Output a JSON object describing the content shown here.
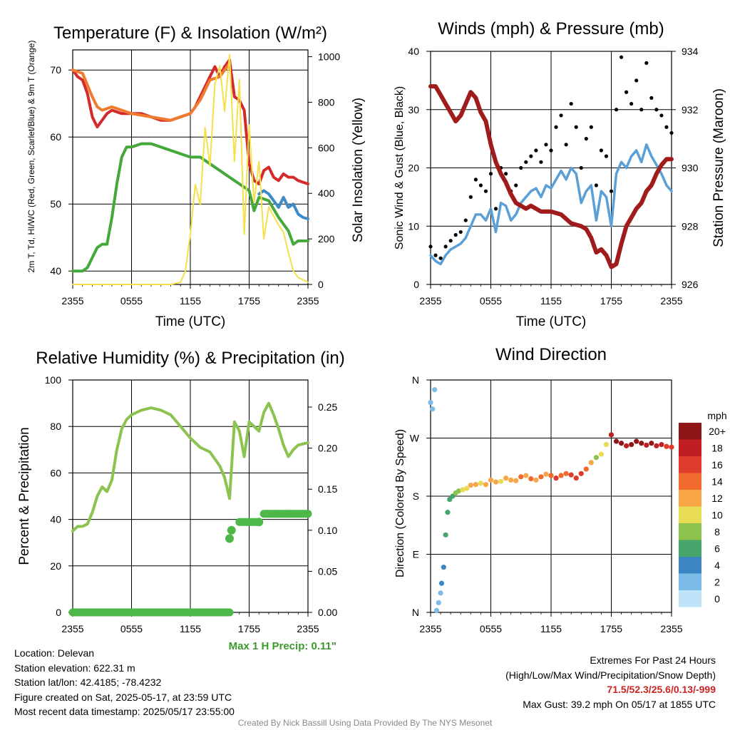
{
  "panels": {
    "temp": {
      "title": "Temperature (F) & Insolation (W/m²)",
      "ylabel_left": "2m T, Td, HI/WC (Red, Green, Scarlet/Blue) & 9m T (Orange)",
      "ylabel_right": "Solar Insolation (Yellow)",
      "xlabel": "Time (UTC)"
    },
    "wind": {
      "title": "Winds (mph) & Pressure (mb)",
      "ylabel_left": "Sonic Wind & Gust (Blue, Black)",
      "ylabel_right": "Station Pressure (Maroon)",
      "xlabel": "Time (UTC)"
    },
    "rh": {
      "title": "Relative Humidity (%) & Precipitation (in)",
      "ylabel_left": "Percent & Precipitation",
      "annotation": "Max 1 H Precip: 0.11\""
    },
    "dir": {
      "title": "Wind Direction",
      "ylabel_left": "Direction (Colored By Speed)",
      "colorbar_title": "mph",
      "colorbar_labels": [
        "20+",
        "18",
        "16",
        "14",
        "12",
        "10",
        "8",
        "6",
        "4",
        "2",
        "0"
      ],
      "colorbar_colors": [
        "#8e1616",
        "#be1e24",
        "#de3b2a",
        "#ef6a2c",
        "#f8a646",
        "#e8dc55",
        "#8cc34f",
        "#45a56a",
        "#3b86c2",
        "#7dbbe8",
        "#bfe3f8"
      ]
    }
  },
  "chart_data": [
    {
      "type": "line",
      "title": "Temperature (F) & Insolation (W/m²)",
      "xlabel": "Time (UTC)",
      "x_ticks": [
        "2355",
        "0555",
        "1155",
        "1755",
        "2355"
      ],
      "x_range_hours": [
        0,
        24
      ],
      "ylim": [
        38,
        73
      ],
      "yticks": [
        40,
        50,
        60,
        70
      ],
      "y2lim": [
        0,
        1030
      ],
      "y2ticks": [
        0,
        200,
        400,
        600,
        800,
        1000
      ],
      "grid": true,
      "series": [
        {
          "name": "2m T (Red)",
          "color": "#d42a2a",
          "axis": "left",
          "x": [
            0,
            0.5,
            1,
            1.5,
            2,
            2.5,
            3,
            3.5,
            4,
            5,
            6,
            7,
            8,
            9,
            10,
            11,
            12,
            12.5,
            13,
            13.5,
            14,
            14.5,
            15,
            15.5,
            16,
            16.5,
            17,
            17.5,
            18,
            18.5,
            19,
            19.5,
            20,
            20.5,
            21,
            21.5,
            22,
            22.5,
            23,
            24
          ],
          "y": [
            70,
            69,
            68.5,
            66.5,
            63,
            61.5,
            62.5,
            63.5,
            64,
            63.5,
            63.5,
            63.5,
            63,
            62.5,
            62.5,
            63,
            63.5,
            64.5,
            66,
            67.5,
            69,
            70.5,
            69,
            70.5,
            71.5,
            66,
            65.5,
            64,
            56,
            53.5,
            53,
            55,
            55.5,
            54,
            53.5,
            54.5,
            54,
            54,
            53.5,
            53
          ]
        },
        {
          "name": "9m T (Orange)",
          "color": "#f07a30",
          "axis": "left",
          "x": [
            0,
            1,
            2,
            2.5,
            3,
            4,
            6,
            8,
            10,
            12,
            13,
            14,
            15,
            15.5,
            16
          ],
          "y": [
            70,
            69.5,
            66,
            64.5,
            64,
            64.5,
            63.5,
            63,
            62.5,
            63.5,
            65.5,
            68.5,
            69,
            70,
            71
          ]
        },
        {
          "name": "Td (Green)",
          "color": "#45a83a",
          "axis": "left",
          "x": [
            0,
            0.5,
            1,
            1.5,
            2,
            2.5,
            3,
            3.5,
            4,
            4.5,
            5,
            5.5,
            6,
            7,
            8,
            9,
            10,
            11,
            12,
            13,
            14,
            15,
            16,
            17,
            18,
            18.5,
            19,
            20,
            21,
            22,
            22.5,
            23,
            24
          ],
          "y": [
            40,
            40,
            40,
            40.5,
            42,
            43.5,
            44,
            44,
            48,
            53,
            57,
            58.5,
            58.5,
            59,
            59,
            58.5,
            58,
            57.5,
            57,
            57,
            56,
            55,
            54,
            53,
            52,
            49,
            51,
            50.5,
            48,
            46,
            44,
            44.5,
            44.5
          ]
        },
        {
          "name": "HI/WC (Blue)",
          "color": "#3d8ac8",
          "axis": "left",
          "x": [
            19,
            19.5,
            20,
            20.5,
            21,
            21.5,
            22,
            22.5,
            23,
            23.5,
            24
          ],
          "y": [
            51.5,
            52,
            51.5,
            50.5,
            49.5,
            51,
            49.5,
            50,
            48.5,
            48,
            47.8
          ]
        },
        {
          "name": "Solar Insolation (Yellow)",
          "color": "#f5e04a",
          "axis": "right",
          "x": [
            0,
            1,
            2,
            4,
            6,
            8,
            10,
            11,
            11.5,
            12,
            12.5,
            13,
            13.5,
            14,
            14.5,
            15,
            15.5,
            16,
            16.5,
            17,
            17.5,
            18,
            18.5,
            19,
            19.5,
            20,
            20.5,
            21,
            21.5,
            22,
            22.5,
            23,
            24
          ],
          "y": [
            0,
            0,
            0,
            0,
            0,
            0,
            0,
            10,
            60,
            220,
            440,
            350,
            690,
            520,
            880,
            960,
            760,
            1010,
            540,
            900,
            220,
            700,
            360,
            540,
            200,
            340,
            300,
            260,
            230,
            140,
            60,
            30,
            10
          ]
        }
      ]
    },
    {
      "type": "line",
      "title": "Winds (mph) & Pressure (mb)",
      "xlabel": "Time (UTC)",
      "x_ticks": [
        "2355",
        "0555",
        "1155",
        "1755",
        "2355"
      ],
      "x_range_hours": [
        0,
        24
      ],
      "ylim": [
        0,
        40
      ],
      "yticks": [
        0,
        10,
        20,
        30,
        40
      ],
      "y2lim": [
        926,
        934
      ],
      "y2ticks": [
        926,
        928,
        930,
        932,
        934
      ],
      "grid": true,
      "series": [
        {
          "name": "Sonic Wind (Blue)",
          "color": "#5a9fd6",
          "axis": "left",
          "x": [
            0,
            0.5,
            1,
            1.5,
            2,
            2.5,
            3,
            3.5,
            4,
            4.5,
            5,
            5.5,
            6,
            6.5,
            7,
            7.5,
            8,
            8.5,
            9,
            9.5,
            10,
            10.5,
            11,
            11.5,
            12,
            12.5,
            13,
            13.5,
            14,
            14.5,
            15,
            15.5,
            16,
            16.5,
            17,
            17.5,
            18,
            18.5,
            19,
            19.5,
            20,
            20.5,
            21,
            21.5,
            22,
            22.5,
            23,
            23.5,
            24
          ],
          "y": [
            5,
            4,
            3.5,
            5,
            6,
            6.5,
            7,
            8,
            10,
            12,
            12,
            11,
            13,
            9,
            14,
            13.5,
            11,
            12,
            14,
            15,
            16,
            16.5,
            15,
            17,
            16.5,
            18,
            19.5,
            18,
            20,
            19,
            14,
            16,
            17,
            11,
            16,
            15,
            10,
            19,
            21,
            20,
            22,
            23,
            21,
            24,
            22,
            20.5,
            19,
            17,
            16
          ]
        },
        {
          "name": "Gust (Black)",
          "color": "#000000",
          "axis": "left",
          "x": [
            0,
            0.5,
            1,
            1.5,
            2,
            2.5,
            3,
            3.5,
            4,
            4.5,
            5,
            5.5,
            6,
            6.5,
            7,
            7.5,
            8,
            8.5,
            9,
            9.5,
            10,
            10.5,
            11,
            11.5,
            12,
            12.5,
            13,
            13.5,
            14,
            14.5,
            15,
            15.5,
            16,
            16.5,
            17,
            17.5,
            18,
            18.5,
            19,
            19.5,
            20,
            20.5,
            21,
            21.5,
            22,
            22.5,
            23,
            23.5,
            24
          ],
          "y": [
            6.5,
            5,
            4.5,
            6.5,
            7.5,
            8.5,
            9,
            11,
            15,
            18,
            17,
            16,
            19,
            13,
            20,
            19,
            16,
            17,
            20,
            21,
            22,
            23,
            21,
            24,
            23,
            27,
            29,
            24,
            31,
            27,
            20,
            25,
            27,
            17,
            23,
            22,
            16,
            30,
            39,
            33,
            31,
            35,
            30,
            38,
            32,
            30,
            29,
            27,
            26
          ]
        },
        {
          "name": "Station Pressure (Maroon)",
          "color": "#a01c1c",
          "axis": "right",
          "x": [
            0,
            0.5,
            1,
            1.5,
            2,
            2.5,
            3,
            3.5,
            4,
            4.5,
            5,
            5.5,
            6,
            6.5,
            7,
            7.5,
            8,
            8.5,
            9,
            9.5,
            10,
            11,
            12,
            13,
            14,
            15,
            15.5,
            16,
            16.5,
            17,
            17.5,
            18,
            18.5,
            19,
            19.5,
            20,
            20.5,
            21,
            21.5,
            22,
            22.5,
            23,
            23.5,
            24
          ],
          "y": [
            932.8,
            932.8,
            932.5,
            932.2,
            931.9,
            931.6,
            931.8,
            932.2,
            932.6,
            932.4,
            931.9,
            931.6,
            930.8,
            930.2,
            929.8,
            929.5,
            929.1,
            928.8,
            928.7,
            928.6,
            928.7,
            928.5,
            928.5,
            928.4,
            928.1,
            928,
            927.9,
            927.6,
            927.1,
            927.2,
            927.0,
            926.6,
            926.7,
            927.4,
            928.0,
            928.3,
            928.6,
            928.8,
            929.2,
            929.4,
            929.8,
            930.1,
            930.3,
            930.3
          ]
        }
      ]
    },
    {
      "type": "line",
      "title": "Relative Humidity (%) & Precipitation (in)",
      "x_ticks": [
        "2355",
        "0555",
        "1155",
        "1755",
        "2355"
      ],
      "x_range_hours": [
        0,
        24
      ],
      "ylim": [
        0,
        100
      ],
      "yticks": [
        0,
        20,
        40,
        60,
        80,
        100
      ],
      "y2lim": [
        0,
        0.283
      ],
      "y2ticks": [
        "0.00",
        "0.05",
        "0.10",
        "0.15",
        "0.20",
        "0.25"
      ],
      "grid": true,
      "series": [
        {
          "name": "Relative Humidity",
          "color": "#8cc34f",
          "axis": "left",
          "x": [
            0,
            0.5,
            1,
            1.5,
            2,
            2.5,
            3,
            3.5,
            4,
            4.5,
            5,
            5.5,
            6,
            7,
            8,
            9,
            10,
            11,
            12,
            13,
            14,
            15,
            15.5,
            16,
            16.5,
            17,
            17.5,
            18,
            18.5,
            19,
            19.5,
            20,
            20.5,
            21,
            21.5,
            22,
            22.5,
            23,
            24
          ],
          "y": [
            35,
            37,
            37,
            38,
            43,
            50,
            54,
            52,
            57,
            70,
            79,
            83,
            85,
            87,
            88,
            87,
            85,
            80,
            75,
            71,
            69,
            63,
            58,
            49,
            82,
            78,
            67,
            82,
            80,
            78,
            86,
            90,
            85,
            79,
            72,
            67,
            70,
            72,
            73
          ]
        },
        {
          "name": "Precipitation",
          "color": "#4db848",
          "axis": "right",
          "x": [
            0,
            3,
            6,
            9,
            12,
            15,
            16,
            16.2,
            17,
            18,
            19,
            19.5,
            21,
            22,
            24
          ],
          "y": [
            0,
            0,
            0,
            0,
            0,
            0,
            0,
            0.1,
            0.11,
            0.11,
            0.11,
            0.12,
            0.12,
            0.12,
            0.12
          ]
        }
      ]
    },
    {
      "type": "scatter",
      "title": "Wind Direction",
      "x_ticks": [
        "2355",
        "0555",
        "1155",
        "1755",
        "2355"
      ],
      "x_range_hours": [
        0,
        24
      ],
      "y_ticks": [
        "N",
        "E",
        "S",
        "W",
        "N"
      ],
      "ylim": [
        0,
        360
      ],
      "grid": true,
      "colorbar": {
        "title": "mph",
        "range": [
          0,
          20
        ]
      },
      "series": [
        {
          "name": "Direction",
          "x": [
            0,
            0.2,
            0.4,
            0.6,
            0.8,
            1.0,
            1.1,
            1.3,
            1.5,
            1.7,
            1.9,
            2.2,
            2.5,
            2.8,
            3.2,
            3.6,
            4,
            4.5,
            5,
            5.5,
            6,
            6.5,
            7,
            7.5,
            8,
            8.5,
            9,
            9.5,
            10,
            10.5,
            11,
            11.5,
            12,
            12.5,
            13,
            13.5,
            14,
            14.5,
            15,
            15.5,
            16,
            16.5,
            17,
            17.5,
            18,
            18.5,
            19,
            19.5,
            20,
            20.5,
            21,
            21.5,
            22,
            22.5,
            23,
            23.5,
            24
          ],
          "y": [
            325,
            315,
            345,
            3,
            15,
            30,
            45,
            70,
            120,
            155,
            175,
            180,
            185,
            188,
            190,
            192,
            197,
            198,
            200,
            198,
            205,
            202,
            203,
            208,
            205,
            204,
            210,
            212,
            207,
            205,
            210,
            214,
            212,
            208,
            212,
            215,
            213,
            208,
            215,
            222,
            232,
            240,
            245,
            260,
            275,
            265,
            262,
            258,
            260,
            265,
            262,
            259,
            262,
            258,
            260,
            257,
            256
          ],
          "speed": [
            3,
            3,
            3,
            2,
            2,
            3,
            4,
            5,
            6,
            6,
            7,
            7,
            8,
            9,
            10,
            11,
            12,
            12,
            11,
            12,
            12,
            13,
            11,
            13,
            12,
            13,
            14,
            13,
            14,
            13,
            14,
            12,
            15,
            16,
            14,
            15,
            16,
            17,
            16,
            14,
            12,
            8,
            10,
            11,
            19,
            21,
            20,
            19,
            20,
            21,
            20,
            19,
            20,
            19,
            18,
            17,
            16
          ]
        }
      ]
    }
  ],
  "info": {
    "location": "Location: Delevan",
    "elevation": "Station elevation: 622.31 m",
    "latlon": "Station lat/lon: 42.4185; -78.4232",
    "created": "Figure created on Sat, 2025-05-17, at 23:59 UTC",
    "recent": "Most recent data timestamp: 2025/05/17 23:55:00",
    "extremes_title": "Extremes For Past 24 Hours",
    "extremes_sub": "(High/Low/Max Wind/Precipitation/Snow Depth)",
    "extremes_values": "71.5/52.3/25.6/0.13/-999",
    "max_gust": "Max Gust: 39.2 mph On 05/17 at 1855 UTC",
    "credit": "Created By Nick Bassill Using Data Provided By The NYS Mesonet"
  }
}
